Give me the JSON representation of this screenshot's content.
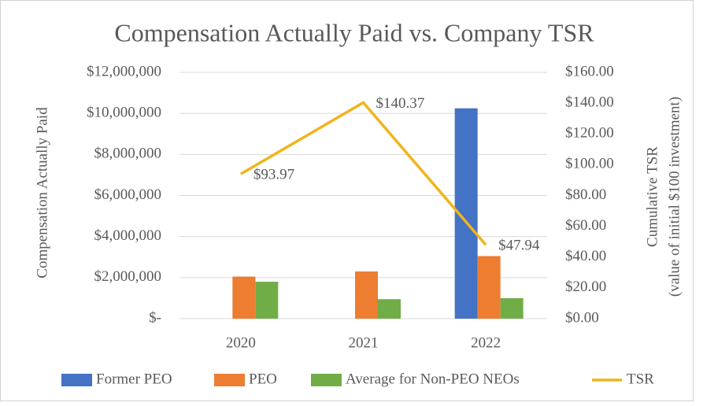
{
  "chart_data": {
    "type": "bar",
    "title": "Compensation Actually Paid vs. Company TSR",
    "ylabel": "Compensation Actually Paid",
    "y2label": [
      "Cumulative TSR",
      "(value of initial $100 investment)"
    ],
    "categories": [
      "2020",
      "2021",
      "2022"
    ],
    "series": [
      {
        "name": "Former PEO",
        "color": "#4472c4",
        "values": [
          null,
          null,
          10250000
        ]
      },
      {
        "name": "PEO",
        "color": "#ed7d31",
        "values": [
          2050000,
          2300000,
          3050000
        ]
      },
      {
        "name": "Average for Non-PEO NEOs",
        "color": "#70ad47",
        "values": [
          1800000,
          950000,
          1000000
        ]
      },
      {
        "name": "TSR",
        "color": "#f0b41c",
        "type": "line",
        "axis": "y2",
        "values": [
          93.97,
          140.37,
          47.94
        ],
        "value_labels": [
          "$93.97",
          "$140.37",
          "$47.94"
        ]
      }
    ],
    "ylim": [
      0,
      12000000
    ],
    "yticks": [
      {
        "value": 0,
        "label": "$-"
      },
      {
        "value": 2000000,
        "label": "$2,000,000"
      },
      {
        "value": 4000000,
        "label": "$4,000,000"
      },
      {
        "value": 6000000,
        "label": "$6,000,000"
      },
      {
        "value": 8000000,
        "label": "$8,000,000"
      },
      {
        "value": 10000000,
        "label": "$10,000,000"
      },
      {
        "value": 12000000,
        "label": "$12,000,000"
      }
    ],
    "y2lim": [
      0,
      160
    ],
    "y2ticks": [
      {
        "value": 0,
        "label": "$0.00"
      },
      {
        "value": 20,
        "label": "$20.00"
      },
      {
        "value": 40,
        "label": "$40.00"
      },
      {
        "value": 60,
        "label": "$60.00"
      },
      {
        "value": 80,
        "label": "$80.00"
      },
      {
        "value": 100,
        "label": "$100.00"
      },
      {
        "value": 120,
        "label": "$120.00"
      },
      {
        "value": 140,
        "label": "$140.00"
      },
      {
        "value": 160,
        "label": "$160.00"
      }
    ],
    "grid": true,
    "legend": "bottom"
  }
}
